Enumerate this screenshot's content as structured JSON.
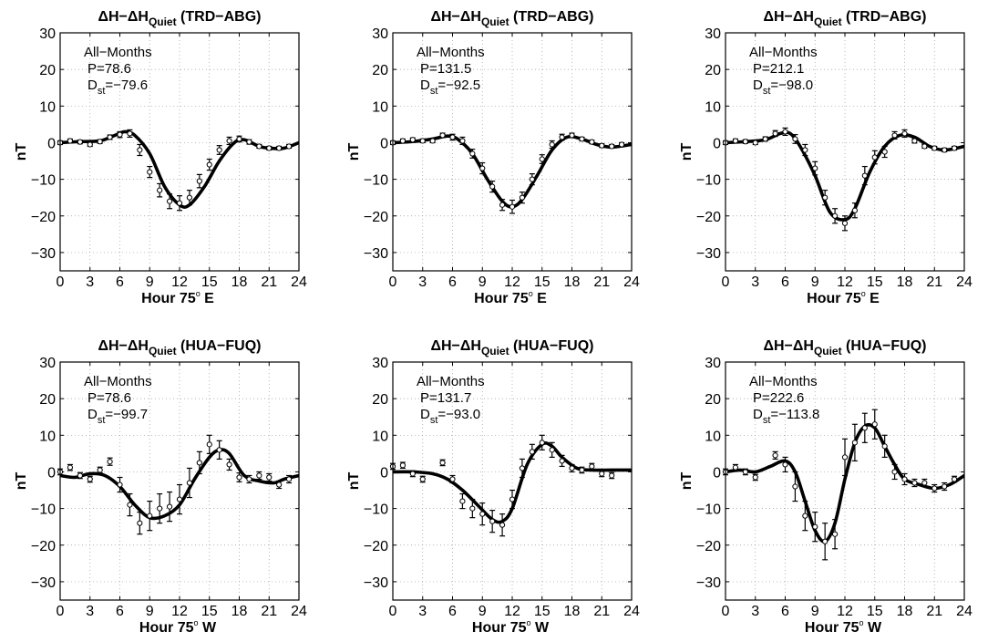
{
  "chart_data": [
    {
      "type": "line",
      "title": "ΔH−ΔH",
      "title_sub": "Quiet",
      "title_suffix": " (TRD−ABG)",
      "xlabel": "Hour 75",
      "xlabel_deg": "o",
      "xlabel_dir": " E",
      "ylabel": "nT",
      "xlim": [
        0,
        24
      ],
      "ylim": [
        -35,
        30
      ],
      "xticks": [
        0,
        3,
        6,
        9,
        12,
        15,
        18,
        21,
        24
      ],
      "yticks": [
        -30,
        -20,
        -10,
        0,
        10,
        20,
        30
      ],
      "grid": true,
      "annotation": {
        "label": "All−Months",
        "p": "P=78.6",
        "dst_main": "D",
        "dst_sub": "st",
        "dst_value": "=−79.6"
      },
      "fit_x": [
        0,
        2,
        4,
        5.5,
        6.5,
        7.5,
        9,
        10.5,
        12,
        13,
        14.5,
        16,
        17.5,
        18.5,
        20,
        21,
        22.5,
        24
      ],
      "fit_y": [
        0,
        0.3,
        0.5,
        2,
        3,
        2,
        -3,
        -12,
        -17,
        -17,
        -12,
        -5,
        0,
        0.8,
        -1,
        -1.5,
        -1.5,
        0
      ],
      "points": [
        {
          "x": 0,
          "y": 0,
          "e": 0.5
        },
        {
          "x": 1,
          "y": 0.5,
          "e": 0.5
        },
        {
          "x": 2,
          "y": 0.2,
          "e": 0.5
        },
        {
          "x": 3,
          "y": -0.5,
          "e": 0.5
        },
        {
          "x": 4,
          "y": 0.3,
          "e": 0.5
        },
        {
          "x": 5,
          "y": 1.5,
          "e": 0.6
        },
        {
          "x": 6,
          "y": 2.2,
          "e": 0.8
        },
        {
          "x": 7,
          "y": 2.5,
          "e": 1
        },
        {
          "x": 8,
          "y": -2,
          "e": 1.5
        },
        {
          "x": 9,
          "y": -8,
          "e": 1.5
        },
        {
          "x": 10,
          "y": -13,
          "e": 1.8
        },
        {
          "x": 11,
          "y": -16,
          "e": 2
        },
        {
          "x": 12,
          "y": -16.5,
          "e": 2
        },
        {
          "x": 13,
          "y": -15,
          "e": 2
        },
        {
          "x": 14,
          "y": -10.5,
          "e": 1.8
        },
        {
          "x": 15,
          "y": -6,
          "e": 1.5
        },
        {
          "x": 16,
          "y": -2,
          "e": 1.2
        },
        {
          "x": 17,
          "y": 0.5,
          "e": 1
        },
        {
          "x": 18,
          "y": 1,
          "e": 0.8
        },
        {
          "x": 19,
          "y": 0.2,
          "e": 0.6
        },
        {
          "x": 20,
          "y": -1,
          "e": 0.5
        },
        {
          "x": 21,
          "y": -1.5,
          "e": 0.5
        },
        {
          "x": 22,
          "y": -1.5,
          "e": 0.5
        },
        {
          "x": 23,
          "y": -1,
          "e": 0.5
        }
      ]
    },
    {
      "type": "line",
      "title": "ΔH−ΔH",
      "title_sub": "Quiet",
      "title_suffix": " (TRD−ABG)",
      "xlabel": "Hour 75",
      "xlabel_deg": "o",
      "xlabel_dir": " E",
      "ylabel": "nT",
      "xlim": [
        0,
        24
      ],
      "ylim": [
        -35,
        30
      ],
      "xticks": [
        0,
        3,
        6,
        9,
        12,
        15,
        18,
        21,
        24
      ],
      "yticks": [
        -30,
        -20,
        -10,
        0,
        10,
        20,
        30
      ],
      "grid": true,
      "annotation": {
        "label": "All−Months",
        "p": "P=131.5",
        "dst_main": "D",
        "dst_sub": "st",
        "dst_value": "=−92.5"
      },
      "fit_x": [
        0,
        2,
        4,
        5.5,
        6.5,
        8,
        9.5,
        11,
        12,
        13,
        14.5,
        16,
        17.5,
        19,
        20.5,
        22,
        24
      ],
      "fit_y": [
        0,
        0.3,
        1,
        1.8,
        1,
        -3,
        -10,
        -16,
        -17.5,
        -15.5,
        -9,
        -2,
        1.5,
        1,
        -0.5,
        -1.2,
        -0.5
      ],
      "points": [
        {
          "x": 0,
          "y": 0,
          "e": 0.5
        },
        {
          "x": 1,
          "y": 0.5,
          "e": 0.5
        },
        {
          "x": 2,
          "y": 0.8,
          "e": 0.5
        },
        {
          "x": 3,
          "y": 0.5,
          "e": 0.5
        },
        {
          "x": 4,
          "y": 0.5,
          "e": 0.5
        },
        {
          "x": 5,
          "y": 2,
          "e": 0.6
        },
        {
          "x": 6,
          "y": 1.5,
          "e": 0.8
        },
        {
          "x": 7,
          "y": 0.5,
          "e": 1
        },
        {
          "x": 8,
          "y": -3,
          "e": 1.2
        },
        {
          "x": 9,
          "y": -7,
          "e": 1.5
        },
        {
          "x": 10,
          "y": -12,
          "e": 1.5
        },
        {
          "x": 11,
          "y": -17,
          "e": 1.5
        },
        {
          "x": 12,
          "y": -17.5,
          "e": 1.8
        },
        {
          "x": 13,
          "y": -15,
          "e": 1.5
        },
        {
          "x": 14,
          "y": -10,
          "e": 1.5
        },
        {
          "x": 15,
          "y": -4.5,
          "e": 1.2
        },
        {
          "x": 16,
          "y": -0.5,
          "e": 1
        },
        {
          "x": 17,
          "y": 1.5,
          "e": 0.8
        },
        {
          "x": 18,
          "y": 2,
          "e": 0.6
        },
        {
          "x": 19,
          "y": 1,
          "e": 0.5
        },
        {
          "x": 20,
          "y": 0.2,
          "e": 0.5
        },
        {
          "x": 21,
          "y": -0.8,
          "e": 0.5
        },
        {
          "x": 22,
          "y": -1,
          "e": 0.5
        },
        {
          "x": 23,
          "y": -0.5,
          "e": 0.5
        }
      ]
    },
    {
      "type": "line",
      "title": "ΔH−ΔH",
      "title_sub": "Quiet",
      "title_suffix": " (TRD−ABG)",
      "xlabel": "Hour 75",
      "xlabel_deg": "o",
      "xlabel_dir": " E",
      "ylabel": "nT",
      "xlim": [
        0,
        24
      ],
      "ylim": [
        -35,
        30
      ],
      "xticks": [
        0,
        3,
        6,
        9,
        12,
        15,
        18,
        21,
        24
      ],
      "yticks": [
        -30,
        -20,
        -10,
        0,
        10,
        20,
        30
      ],
      "grid": true,
      "annotation": {
        "label": "All−Months",
        "p": "P=212.1",
        "dst_main": "D",
        "dst_sub": "st",
        "dst_value": "=−98.0"
      },
      "fit_x": [
        0,
        2,
        4,
        5.5,
        6.5,
        7.5,
        9,
        10.5,
        12,
        13,
        14.5,
        16,
        17.5,
        19,
        20.5,
        22,
        24
      ],
      "fit_y": [
        0,
        0.3,
        0.8,
        2.5,
        2.5,
        -1,
        -9,
        -19,
        -21,
        -18,
        -8,
        -1,
        2,
        1.5,
        -1,
        -2,
        -1
      ],
      "points": [
        {
          "x": 0,
          "y": 0,
          "e": 0.5
        },
        {
          "x": 1,
          "y": 0.5,
          "e": 0.5
        },
        {
          "x": 2,
          "y": 0.3,
          "e": 0.5
        },
        {
          "x": 3,
          "y": 0,
          "e": 0.5
        },
        {
          "x": 4,
          "y": 1,
          "e": 0.6
        },
        {
          "x": 5,
          "y": 2.5,
          "e": 0.8
        },
        {
          "x": 6,
          "y": 3,
          "e": 1
        },
        {
          "x": 7,
          "y": 1,
          "e": 1.2
        },
        {
          "x": 8,
          "y": -2,
          "e": 1.5
        },
        {
          "x": 9,
          "y": -7,
          "e": 1.8
        },
        {
          "x": 10,
          "y": -15,
          "e": 2
        },
        {
          "x": 11,
          "y": -20,
          "e": 2
        },
        {
          "x": 12,
          "y": -22,
          "e": 2
        },
        {
          "x": 13,
          "y": -18.5,
          "e": 2
        },
        {
          "x": 14,
          "y": -9,
          "e": 2.5
        },
        {
          "x": 15,
          "y": -4,
          "e": 1.8
        },
        {
          "x": 16,
          "y": -2.5,
          "e": 1.5
        },
        {
          "x": 17,
          "y": 2,
          "e": 1
        },
        {
          "x": 18,
          "y": 2.5,
          "e": 1
        },
        {
          "x": 19,
          "y": 0.5,
          "e": 0.6
        },
        {
          "x": 20,
          "y": -1,
          "e": 0.5
        },
        {
          "x": 21,
          "y": -1.5,
          "e": 0.5
        },
        {
          "x": 22,
          "y": -2,
          "e": 0.5
        },
        {
          "x": 23,
          "y": -1.5,
          "e": 0.5
        }
      ]
    },
    {
      "type": "line",
      "title": "ΔH−ΔH",
      "title_sub": "Quiet",
      "title_suffix": " (HUA−FUQ)",
      "xlabel": "Hour 75",
      "xlabel_deg": "o",
      "xlabel_dir": " W",
      "ylabel": "nT",
      "xlim": [
        0,
        24
      ],
      "ylim": [
        -35,
        30
      ],
      "xticks": [
        0,
        3,
        6,
        9,
        12,
        15,
        18,
        21,
        24
      ],
      "yticks": [
        -30,
        -20,
        -10,
        0,
        10,
        20,
        30
      ],
      "grid": true,
      "annotation": {
        "label": "All−Months",
        "p": "P=78.6",
        "dst_main": "D",
        "dst_sub": "st",
        "dst_value": "=−99.7"
      },
      "fit_x": [
        0,
        1.5,
        3,
        4.5,
        6,
        7.5,
        9,
        10.5,
        12,
        13.5,
        15,
        16,
        17,
        18.5,
        20,
        21.5,
        22.5,
        24
      ],
      "fit_y": [
        -1,
        -1.5,
        -0.5,
        -1,
        -4,
        -9,
        -12.5,
        -12,
        -9,
        -2,
        4,
        6,
        5,
        -1,
        -2.5,
        -3,
        -2,
        -1
      ],
      "points": [
        {
          "x": 0,
          "y": 0,
          "e": 0.8
        },
        {
          "x": 1,
          "y": 1.2,
          "e": 0.8
        },
        {
          "x": 2,
          "y": -1,
          "e": 0.8
        },
        {
          "x": 3,
          "y": -2,
          "e": 0.8
        },
        {
          "x": 4,
          "y": 0.5,
          "e": 0.8
        },
        {
          "x": 5,
          "y": 2.8,
          "e": 1
        },
        {
          "x": 6,
          "y": -3.5,
          "e": 2
        },
        {
          "x": 7,
          "y": -9,
          "e": 3
        },
        {
          "x": 8,
          "y": -14,
          "e": 3
        },
        {
          "x": 9,
          "y": -12,
          "e": 4
        },
        {
          "x": 10,
          "y": -10,
          "e": 4
        },
        {
          "x": 11,
          "y": -9.5,
          "e": 4
        },
        {
          "x": 12,
          "y": -7.5,
          "e": 4
        },
        {
          "x": 13,
          "y": -3,
          "e": 4
        },
        {
          "x": 14,
          "y": 2.5,
          "e": 3
        },
        {
          "x": 15,
          "y": 7.5,
          "e": 2.5
        },
        {
          "x": 16,
          "y": 6,
          "e": 2.5
        },
        {
          "x": 17,
          "y": 2,
          "e": 1.5
        },
        {
          "x": 18,
          "y": -1.5,
          "e": 1.2
        },
        {
          "x": 19,
          "y": -2,
          "e": 1
        },
        {
          "x": 20,
          "y": -1,
          "e": 1
        },
        {
          "x": 21,
          "y": -1.5,
          "e": 1
        },
        {
          "x": 22,
          "y": -3.5,
          "e": 1
        },
        {
          "x": 23,
          "y": -2,
          "e": 1
        }
      ]
    },
    {
      "type": "line",
      "title": "ΔH−ΔH",
      "title_sub": "Quiet",
      "title_suffix": " (HUA−FUQ)",
      "xlabel": "Hour 75",
      "xlabel_deg": "o",
      "xlabel_dir": " W",
      "ylabel": "nT",
      "xlim": [
        0,
        24
      ],
      "ylim": [
        -35,
        30
      ],
      "xticks": [
        0,
        3,
        6,
        9,
        12,
        15,
        18,
        21,
        24
      ],
      "yticks": [
        -30,
        -20,
        -10,
        0,
        10,
        20,
        30
      ],
      "grid": true,
      "annotation": {
        "label": "All−Months",
        "p": "P=131.7",
        "dst_main": "D",
        "dst_sub": "st",
        "dst_value": "=−93.0"
      },
      "fit_x": [
        0,
        2,
        4,
        5.5,
        7,
        8.5,
        10,
        11,
        12,
        13.5,
        15,
        16,
        17,
        18.5,
        20,
        22,
        24
      ],
      "fit_y": [
        0,
        0,
        -0.5,
        -2,
        -5,
        -9,
        -13,
        -13.5,
        -10,
        2,
        7.5,
        7,
        4,
        1,
        0.5,
        0.5,
        0.5
      ],
      "points": [
        {
          "x": 0,
          "y": 1.5,
          "e": 0.8
        },
        {
          "x": 1,
          "y": 1.8,
          "e": 0.8
        },
        {
          "x": 2,
          "y": -0.5,
          "e": 0.8
        },
        {
          "x": 3,
          "y": -2,
          "e": 0.8
        },
        {
          "x": 5,
          "y": 2.5,
          "e": 0.8
        },
        {
          "x": 6,
          "y": -2,
          "e": 1
        },
        {
          "x": 7,
          "y": -8,
          "e": 2
        },
        {
          "x": 8,
          "y": -10,
          "e": 2.5
        },
        {
          "x": 9,
          "y": -11.5,
          "e": 3
        },
        {
          "x": 10,
          "y": -13.5,
          "e": 3
        },
        {
          "x": 11,
          "y": -14.5,
          "e": 3
        },
        {
          "x": 12,
          "y": -7.5,
          "e": 2.5
        },
        {
          "x": 13,
          "y": 1,
          "e": 2.5
        },
        {
          "x": 14,
          "y": 5.5,
          "e": 2
        },
        {
          "x": 15,
          "y": 8,
          "e": 2
        },
        {
          "x": 16,
          "y": 6,
          "e": 2
        },
        {
          "x": 17,
          "y": 3,
          "e": 1.5
        },
        {
          "x": 18,
          "y": 1,
          "e": 1
        },
        {
          "x": 19,
          "y": 0.5,
          "e": 0.8
        },
        {
          "x": 20,
          "y": 1.5,
          "e": 0.8
        },
        {
          "x": 21,
          "y": -0.5,
          "e": 0.8
        },
        {
          "x": 22,
          "y": -1,
          "e": 0.8
        }
      ]
    },
    {
      "type": "line",
      "title": "ΔH−ΔH",
      "title_sub": "Quiet",
      "title_suffix": " (HUA−FUQ)",
      "xlabel": "Hour 75",
      "xlabel_deg": "o",
      "xlabel_dir": " W",
      "ylabel": "nT",
      "xlim": [
        0,
        24
      ],
      "ylim": [
        -35,
        30
      ],
      "xticks": [
        0,
        3,
        6,
        9,
        12,
        15,
        18,
        21,
        24
      ],
      "yticks": [
        -30,
        -20,
        -10,
        0,
        10,
        20,
        30
      ],
      "grid": true,
      "annotation": {
        "label": "All−Months",
        "p": "P=222.6",
        "dst_main": "D",
        "dst_sub": "st",
        "dst_value": "=−113.8"
      },
      "fit_x": [
        0,
        1.5,
        3,
        4.5,
        6,
        7,
        8,
        9,
        10,
        11,
        12,
        13,
        14,
        15,
        16,
        17,
        18,
        19.5,
        21,
        22.5,
        24
      ],
      "fit_y": [
        0,
        0.5,
        0,
        1.5,
        3,
        0,
        -8,
        -16,
        -19,
        -14,
        -2,
        8,
        12.5,
        12,
        7,
        2,
        -2,
        -3.5,
        -4.5,
        -3.5,
        -1
      ],
      "points": [
        {
          "x": 0,
          "y": 0,
          "e": 0.8
        },
        {
          "x": 1,
          "y": 1.2,
          "e": 0.8
        },
        {
          "x": 2,
          "y": 0,
          "e": 0.8
        },
        {
          "x": 3,
          "y": -1.5,
          "e": 0.8
        },
        {
          "x": 5,
          "y": 4.5,
          "e": 1
        },
        {
          "x": 6,
          "y": 2,
          "e": 2
        },
        {
          "x": 7,
          "y": -4,
          "e": 4
        },
        {
          "x": 8,
          "y": -12,
          "e": 4
        },
        {
          "x": 9,
          "y": -15,
          "e": 4
        },
        {
          "x": 10,
          "y": -19,
          "e": 5
        },
        {
          "x": 11,
          "y": -17,
          "e": 4
        },
        {
          "x": 12,
          "y": 4,
          "e": 5
        },
        {
          "x": 13,
          "y": 8,
          "e": 5
        },
        {
          "x": 14,
          "y": 12,
          "e": 4
        },
        {
          "x": 15,
          "y": 13,
          "e": 4
        },
        {
          "x": 16,
          "y": 7,
          "e": 3
        },
        {
          "x": 17,
          "y": 0,
          "e": 2
        },
        {
          "x": 18,
          "y": -2,
          "e": 1.5
        },
        {
          "x": 19,
          "y": -3,
          "e": 1
        },
        {
          "x": 20,
          "y": -3,
          "e": 1
        },
        {
          "x": 21,
          "y": -4.5,
          "e": 1
        },
        {
          "x": 22,
          "y": -4,
          "e": 1
        },
        {
          "x": 23,
          "y": -2,
          "e": 0.8
        }
      ]
    }
  ]
}
